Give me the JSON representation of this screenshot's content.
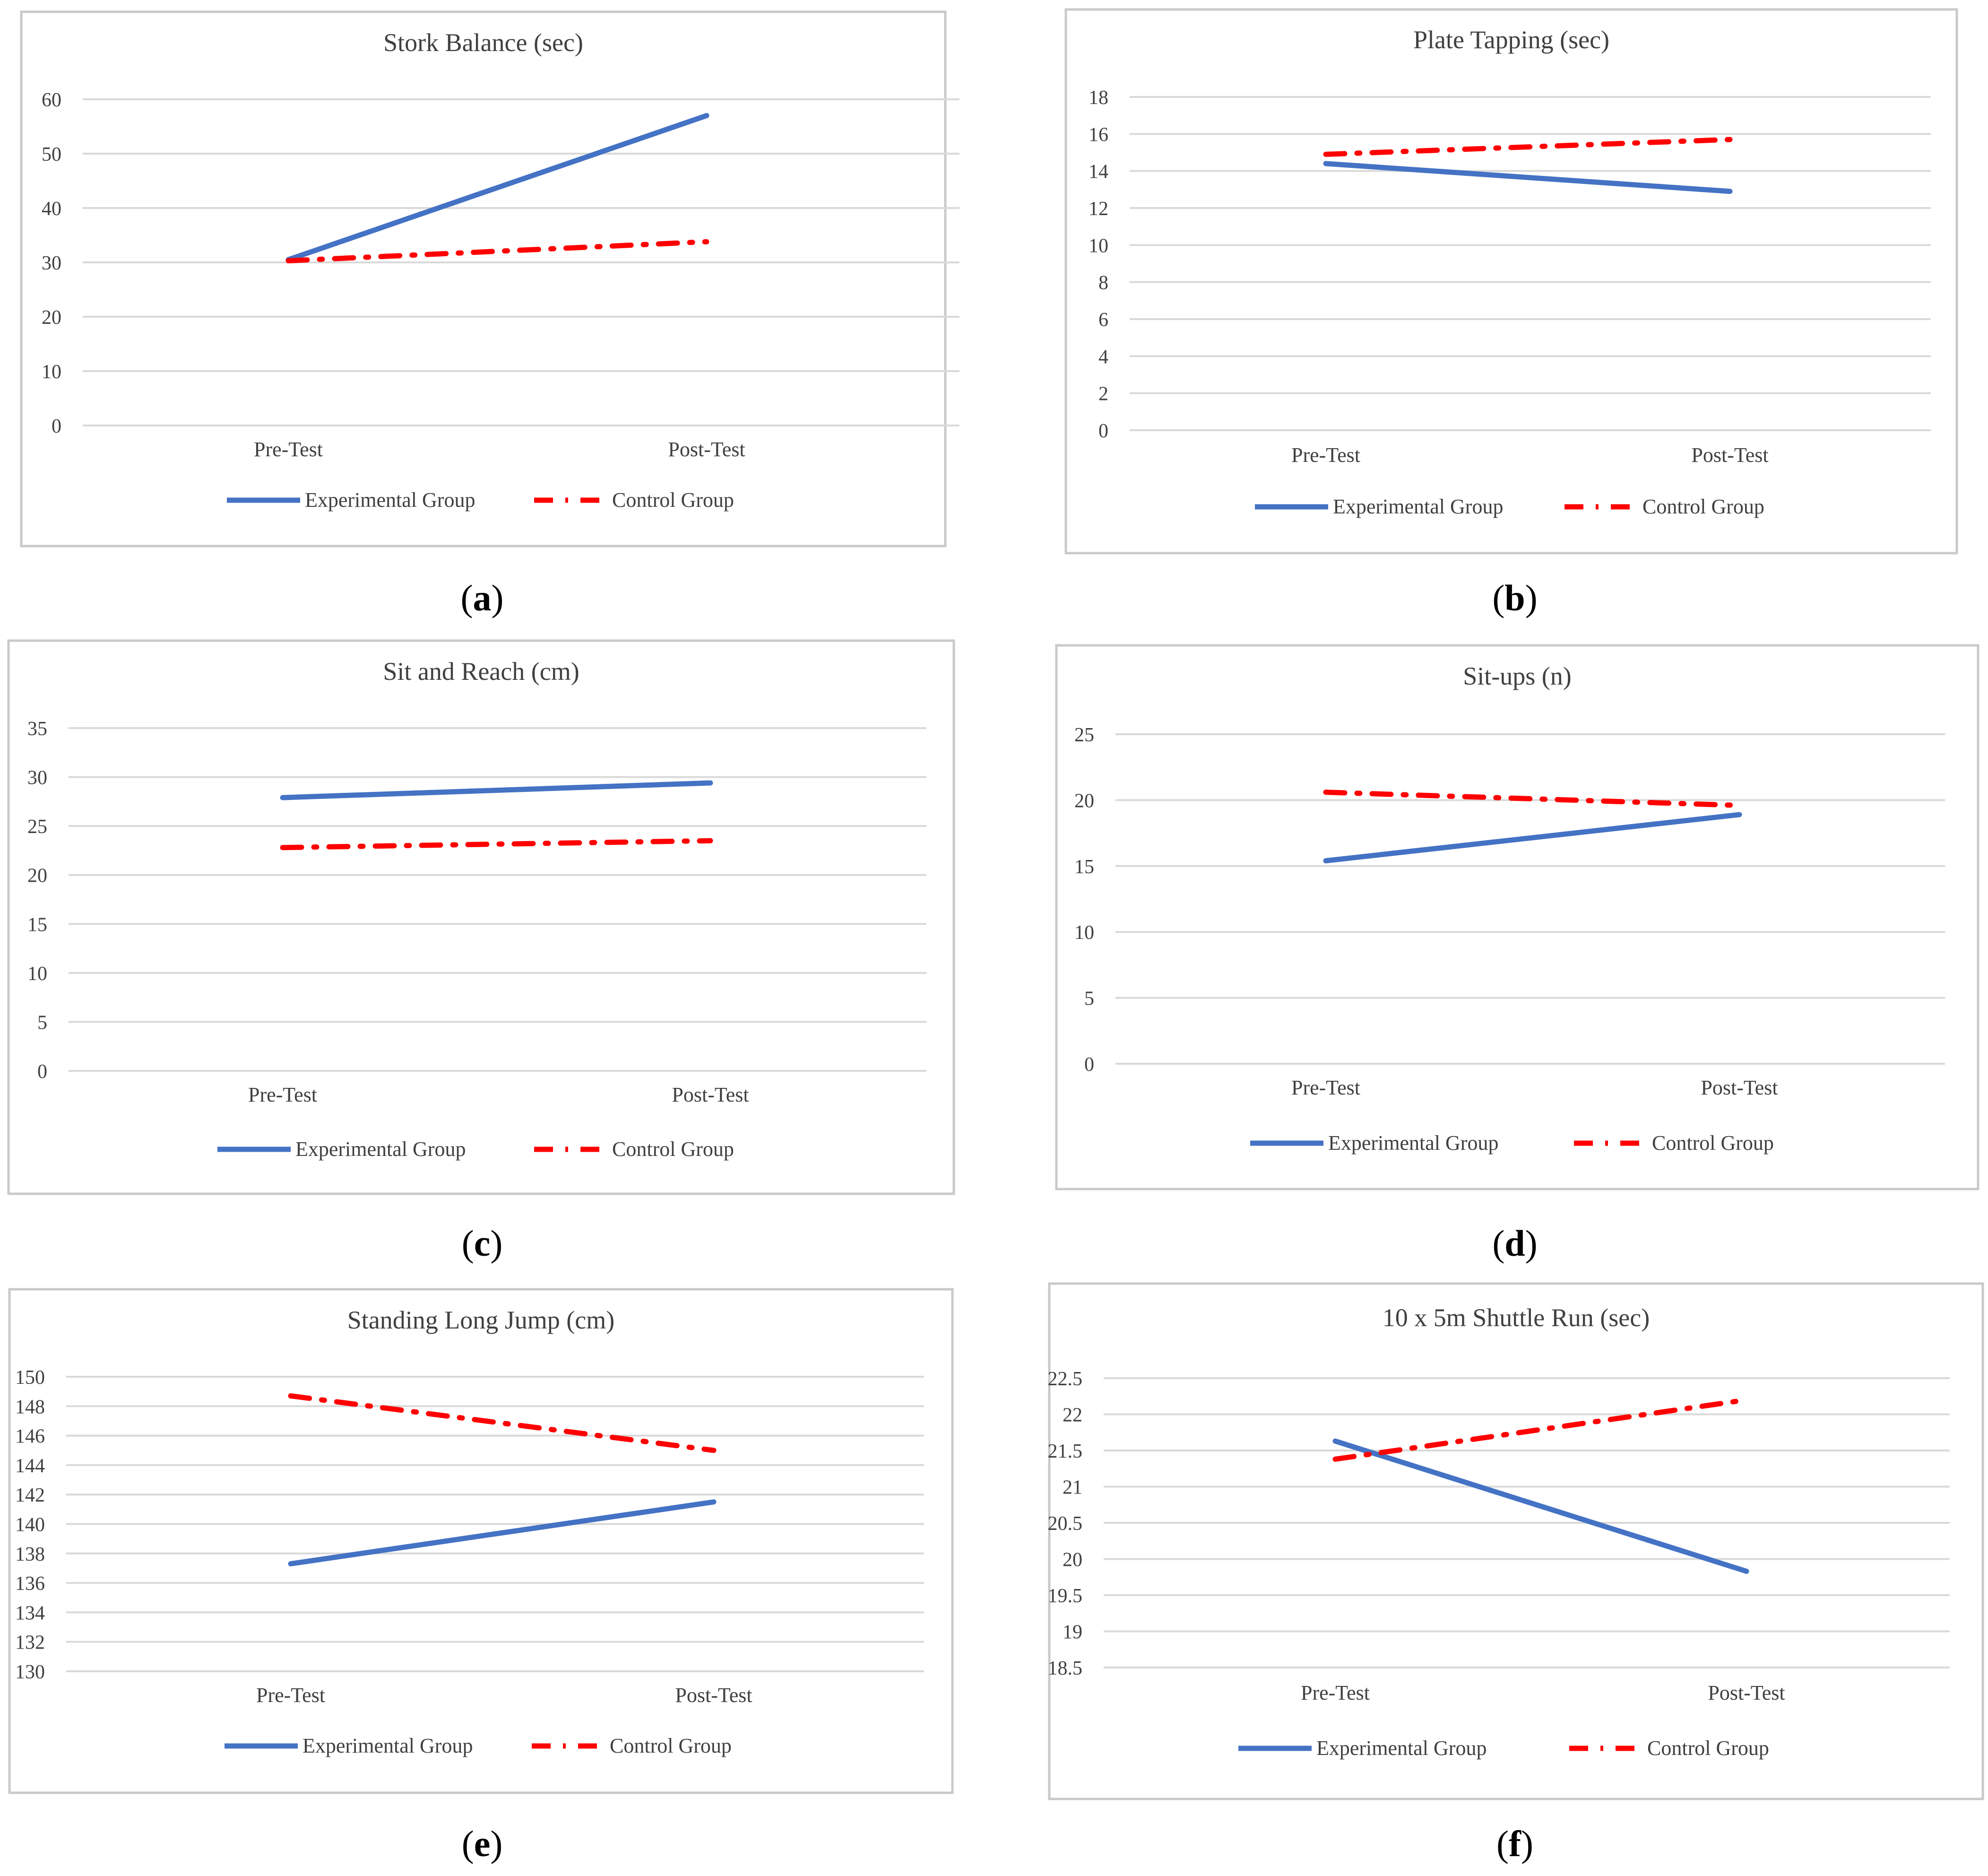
{
  "chart_data": [
    {
      "type": "line",
      "title": "Stork Balance (sec)",
      "categories": [
        "Pre-Test",
        "Post-Test"
      ],
      "series": [
        {
          "name": "Experimental Group",
          "values": [
            30.5,
            57.0
          ]
        },
        {
          "name": "Control Group",
          "values": [
            30.3,
            33.8
          ]
        }
      ],
      "ylim": [
        0,
        60
      ],
      "yticks": [
        0,
        10,
        20,
        30,
        40,
        50,
        60
      ],
      "ytick_labels": [
        "0",
        "10",
        "20",
        "30",
        "40",
        "50",
        "60"
      ],
      "grid": true,
      "legend": "bottom",
      "caption": "a"
    },
    {
      "type": "line",
      "title": "Plate Tapping (sec)",
      "categories": [
        "Pre-Test",
        "Post-Test"
      ],
      "series": [
        {
          "name": "Experimental Group",
          "values": [
            14.4,
            12.9
          ]
        },
        {
          "name": "Control Group",
          "values": [
            14.9,
            15.7
          ]
        }
      ],
      "ylim": [
        0,
        18
      ],
      "yticks": [
        0,
        2,
        4,
        6,
        8,
        10,
        12,
        14,
        16,
        18
      ],
      "ytick_labels": [
        "0",
        "2",
        "4",
        "6",
        "8",
        "10",
        "12",
        "14",
        "16",
        "18"
      ],
      "grid": true,
      "legend": "bottom",
      "caption": "b"
    },
    {
      "type": "line",
      "title": "Sit and Reach (cm)",
      "categories": [
        "Pre-Test",
        "Post-Test"
      ],
      "series": [
        {
          "name": "Experimental Group",
          "values": [
            27.9,
            29.4
          ]
        },
        {
          "name": "Control Group",
          "values": [
            22.8,
            23.5
          ]
        }
      ],
      "ylim": [
        0,
        35
      ],
      "yticks": [
        0,
        5,
        10,
        15,
        20,
        25,
        30,
        35
      ],
      "ytick_labels": [
        "0",
        "5",
        "10",
        "15",
        "20",
        "25",
        "30",
        "35"
      ],
      "grid": true,
      "legend": "bottom",
      "caption": "c"
    },
    {
      "type": "line",
      "title": "Sit-ups (n)",
      "categories": [
        "Pre-Test",
        "Post-Test"
      ],
      "series": [
        {
          "name": "Experimental Group",
          "values": [
            15.4,
            18.9
          ]
        },
        {
          "name": "Control Group",
          "values": [
            20.6,
            19.6
          ]
        }
      ],
      "ylim": [
        0,
        25
      ],
      "yticks": [
        0,
        5,
        10,
        15,
        20,
        25
      ],
      "ytick_labels": [
        "0",
        "5",
        "10",
        "15",
        "20",
        "25"
      ],
      "grid": true,
      "legend": "bottom",
      "caption": "d"
    },
    {
      "type": "line",
      "title": "Standing Long Jump (cm)",
      "categories": [
        "Pre-Test",
        "Post-Test"
      ],
      "series": [
        {
          "name": "Experimental Group",
          "values": [
            137.3,
            141.5
          ]
        },
        {
          "name": "Control Group",
          "values": [
            148.7,
            145.0
          ]
        }
      ],
      "ylim": [
        130,
        150
      ],
      "yticks": [
        130,
        132,
        134,
        136,
        138,
        140,
        142,
        144,
        146,
        148,
        150
      ],
      "ytick_labels": [
        "130",
        "132",
        "134",
        "136",
        "138",
        "140",
        "142",
        "144",
        "146",
        "148",
        "150"
      ],
      "grid": true,
      "legend": "bottom",
      "caption": "e"
    },
    {
      "type": "line",
      "title": "10 x 5m Shuttle Run (sec)",
      "categories": [
        "Pre-Test",
        "Post-Test"
      ],
      "series": [
        {
          "name": "Experimental Group",
          "values": [
            21.63,
            19.83
          ]
        },
        {
          "name": "Control Group",
          "values": [
            21.38,
            22.2
          ]
        }
      ],
      "ylim": [
        18.5,
        22.5
      ],
      "yticks": [
        18.5,
        19,
        19.5,
        20,
        20.5,
        21,
        21.5,
        22,
        22.5
      ],
      "ytick_labels": [
        "18.5",
        "19",
        "19.5",
        "20",
        "20.5",
        "21",
        "21.5",
        "22",
        "22.5"
      ],
      "grid": true,
      "legend": "bottom",
      "caption": "f"
    }
  ],
  "colors": {
    "experimental": "#4472C4",
    "control": "#FF0000",
    "grid": "#D9D9D9",
    "frame": "#C9C9C9",
    "text": "#404040"
  }
}
